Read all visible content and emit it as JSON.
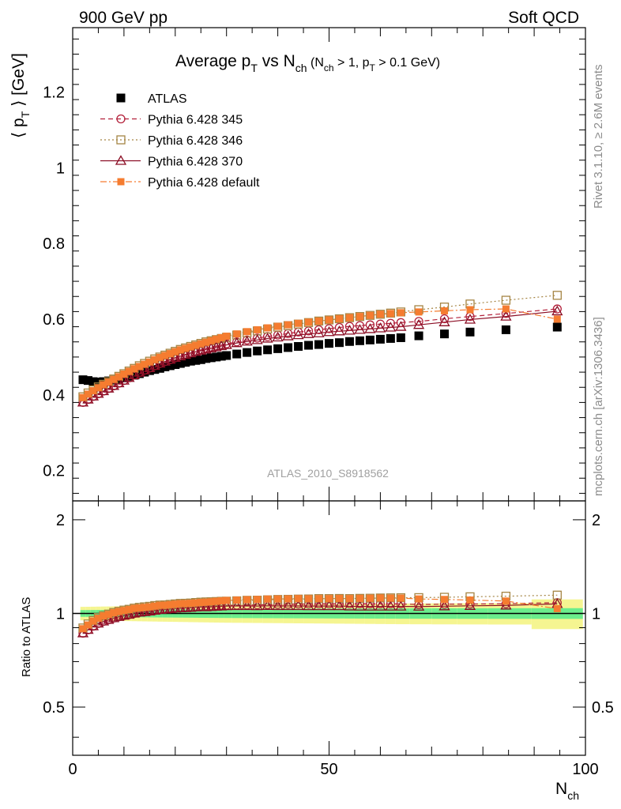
{
  "header": {
    "left": "900 GeV pp",
    "right": "Soft QCD"
  },
  "side_text": {
    "rivet": "Rivet 3.1.10, ≥ 2.6M events",
    "mcplots": "mcplots.cern.ch [arXiv:1306.3436]"
  },
  "analysis_label": "ATLAS_2010_S8918562",
  "colors": {
    "atlas": "#000000",
    "p345": "#b3203a",
    "p346": "#a58544",
    "p370": "#8b0d24",
    "pdefault": "#f57c30",
    "band_inner": "#6bed8c",
    "band_outer": "#f5f591"
  },
  "chart_data": [
    {
      "type": "scatter",
      "panel": "main",
      "title_parts": {
        "main": "Average p",
        "main_sub": "T",
        "vs": " vs N",
        "vs_sub": "ch",
        "cut1": " (N",
        "cut1_sub": "ch",
        "cut2": " > 1, p",
        "cut2_sub": "T",
        "cut3": " > 0.1 GeV)"
      },
      "ylabel_parts": {
        "open": "⟨ p",
        "sub": "T",
        "close": " ⟩  [GeV]"
      },
      "xlabel_parts": {
        "main": "N",
        "sub": "ch"
      },
      "xlim": [
        0,
        100
      ],
      "ylim": [
        0.12,
        1.37
      ],
      "x_ticks": [
        0,
        50,
        100
      ],
      "y_ticks": [
        0.2,
        0.4,
        0.6,
        0.8,
        1,
        1.2
      ],
      "legend_position": "top-left",
      "x": [
        2,
        3,
        4,
        5,
        6,
        7,
        8,
        9,
        10,
        11,
        12,
        13,
        14,
        15,
        16,
        17,
        18,
        19,
        20,
        21,
        22,
        23,
        24,
        25,
        26,
        27,
        28,
        29,
        30,
        32,
        34,
        36,
        38,
        40,
        42,
        44,
        46,
        48,
        50,
        52,
        54,
        56,
        58,
        60,
        62,
        64,
        67.5,
        72.5,
        77.5,
        84.5,
        94.5
      ],
      "series": [
        {
          "name": "ATLAS",
          "marker": "filled-square",
          "values": [
            0.44,
            0.438,
            0.435,
            0.434,
            0.435,
            0.437,
            0.439,
            0.442,
            0.445,
            0.449,
            0.452,
            0.456,
            0.46,
            0.464,
            0.467,
            0.47,
            0.474,
            0.477,
            0.48,
            0.483,
            0.486,
            0.489,
            0.491,
            0.493,
            0.496,
            0.498,
            0.5,
            0.502,
            0.504,
            0.508,
            0.512,
            0.516,
            0.519,
            0.522,
            0.525,
            0.528,
            0.531,
            0.533,
            0.536,
            0.538,
            0.541,
            0.543,
            0.545,
            0.547,
            0.549,
            0.551,
            0.556,
            0.561,
            0.566,
            0.572,
            0.579
          ]
        },
        {
          "name": "Pythia 6.428 345",
          "marker": "open-circle",
          "line": "dashed",
          "values": [
            0.38,
            0.388,
            0.396,
            0.403,
            0.41,
            0.417,
            0.424,
            0.431,
            0.438,
            0.445,
            0.452,
            0.459,
            0.465,
            0.471,
            0.477,
            0.483,
            0.488,
            0.493,
            0.498,
            0.503,
            0.507,
            0.511,
            0.515,
            0.519,
            0.523,
            0.526,
            0.529,
            0.532,
            0.535,
            0.54,
            0.545,
            0.55,
            0.554,
            0.558,
            0.562,
            0.566,
            0.569,
            0.572,
            0.575,
            0.578,
            0.581,
            0.583,
            0.585,
            0.587,
            0.589,
            0.591,
            0.594,
            0.601,
            0.607,
            0.615,
            0.627
          ]
        },
        {
          "name": "Pythia 6.428 346",
          "marker": "open-square",
          "line": "dotted",
          "values": [
            0.395,
            0.405,
            0.413,
            0.421,
            0.428,
            0.435,
            0.442,
            0.449,
            0.456,
            0.463,
            0.47,
            0.477,
            0.483,
            0.489,
            0.495,
            0.5,
            0.505,
            0.51,
            0.515,
            0.52,
            0.524,
            0.528,
            0.532,
            0.536,
            0.54,
            0.543,
            0.546,
            0.549,
            0.552,
            0.558,
            0.564,
            0.569,
            0.574,
            0.579,
            0.583,
            0.587,
            0.591,
            0.595,
            0.598,
            0.601,
            0.604,
            0.607,
            0.61,
            0.613,
            0.616,
            0.619,
            0.625,
            0.632,
            0.64,
            0.65,
            0.663
          ]
        },
        {
          "name": "Pythia 6.428 370",
          "marker": "open-triangle",
          "line": "solid",
          "values": [
            0.38,
            0.388,
            0.396,
            0.403,
            0.41,
            0.417,
            0.424,
            0.431,
            0.438,
            0.445,
            0.452,
            0.459,
            0.465,
            0.471,
            0.477,
            0.483,
            0.488,
            0.493,
            0.498,
            0.502,
            0.506,
            0.51,
            0.514,
            0.517,
            0.52,
            0.523,
            0.526,
            0.529,
            0.532,
            0.537,
            0.541,
            0.545,
            0.549,
            0.552,
            0.555,
            0.558,
            0.561,
            0.563,
            0.566,
            0.568,
            0.57,
            0.572,
            0.574,
            0.576,
            0.578,
            0.58,
            0.585,
            0.592,
            0.599,
            0.607,
            0.621
          ]
        },
        {
          "name": "Pythia 6.428 default",
          "marker": "filled-square-small",
          "line": "dashdot",
          "values": [
            0.393,
            0.402,
            0.411,
            0.419,
            0.427,
            0.434,
            0.441,
            0.448,
            0.455,
            0.462,
            0.469,
            0.475,
            0.481,
            0.487,
            0.493,
            0.499,
            0.504,
            0.509,
            0.514,
            0.519,
            0.523,
            0.527,
            0.531,
            0.535,
            0.539,
            0.543,
            0.547,
            0.551,
            0.555,
            0.561,
            0.567,
            0.572,
            0.577,
            0.581,
            0.585,
            0.589,
            0.592,
            0.595,
            0.598,
            0.601,
            0.604,
            0.607,
            0.61,
            0.613,
            0.615,
            0.617,
            0.619,
            0.622,
            0.625,
            0.627,
            0.6
          ]
        }
      ]
    },
    {
      "type": "scatter",
      "panel": "ratio",
      "ylabel": "Ratio to ATLAS",
      "xlim": [
        0,
        100
      ],
      "ylim": [
        0.35,
        2.3
      ],
      "y_ticks": [
        0.5,
        1,
        2
      ],
      "series": [
        {
          "name": "Pythia 6.428 345",
          "values": [
            0.864,
            0.886,
            0.91,
            0.929,
            0.943,
            0.954,
            0.966,
            0.975,
            0.984,
            0.991,
            1.0,
            1.007,
            1.011,
            1.015,
            1.021,
            1.028,
            1.03,
            1.034,
            1.038,
            1.041,
            1.043,
            1.045,
            1.049,
            1.053,
            1.054,
            1.056,
            1.058,
            1.06,
            1.062,
            1.063,
            1.064,
            1.066,
            1.067,
            1.069,
            1.07,
            1.072,
            1.072,
            1.073,
            1.073,
            1.074,
            1.074,
            1.074,
            1.073,
            1.073,
            1.073,
            1.073,
            1.068,
            1.071,
            1.072,
            1.075,
            1.083
          ]
        },
        {
          "name": "Pythia 6.428 346",
          "values": [
            0.898,
            0.925,
            0.949,
            0.97,
            0.984,
            0.995,
            1.007,
            1.016,
            1.025,
            1.031,
            1.04,
            1.046,
            1.05,
            1.054,
            1.06,
            1.064,
            1.065,
            1.069,
            1.073,
            1.077,
            1.078,
            1.08,
            1.084,
            1.087,
            1.089,
            1.09,
            1.092,
            1.094,
            1.095,
            1.098,
            1.102,
            1.103,
            1.106,
            1.109,
            1.11,
            1.112,
            1.113,
            1.116,
            1.116,
            1.117,
            1.116,
            1.118,
            1.119,
            1.121,
            1.122,
            1.123,
            1.124,
            1.127,
            1.131,
            1.136,
            1.145
          ]
        },
        {
          "name": "Pythia 6.428 370",
          "values": [
            0.864,
            0.886,
            0.91,
            0.929,
            0.943,
            0.954,
            0.966,
            0.975,
            0.984,
            0.991,
            1.0,
            1.007,
            1.011,
            1.015,
            1.021,
            1.028,
            1.03,
            1.034,
            1.038,
            1.039,
            1.041,
            1.043,
            1.047,
            1.049,
            1.048,
            1.05,
            1.052,
            1.054,
            1.056,
            1.057,
            1.057,
            1.056,
            1.058,
            1.057,
            1.057,
            1.057,
            1.056,
            1.056,
            1.056,
            1.056,
            1.054,
            1.053,
            1.053,
            1.053,
            1.053,
            1.053,
            1.052,
            1.055,
            1.058,
            1.061,
            1.073
          ]
        },
        {
          "name": "Pythia 6.428 default",
          "values": [
            0.893,
            0.918,
            0.945,
            0.965,
            0.982,
            0.993,
            1.005,
            1.014,
            1.022,
            1.029,
            1.038,
            1.042,
            1.046,
            1.05,
            1.056,
            1.062,
            1.063,
            1.067,
            1.071,
            1.075,
            1.076,
            1.078,
            1.081,
            1.085,
            1.087,
            1.09,
            1.094,
            1.098,
            1.101,
            1.104,
            1.107,
            1.109,
            1.112,
            1.113,
            1.114,
            1.116,
            1.115,
            1.116,
            1.116,
            1.117,
            1.116,
            1.118,
            1.119,
            1.121,
            1.12,
            1.12,
            1.113,
            1.109,
            1.104,
            1.096,
            1.036
          ]
        }
      ]
    }
  ]
}
